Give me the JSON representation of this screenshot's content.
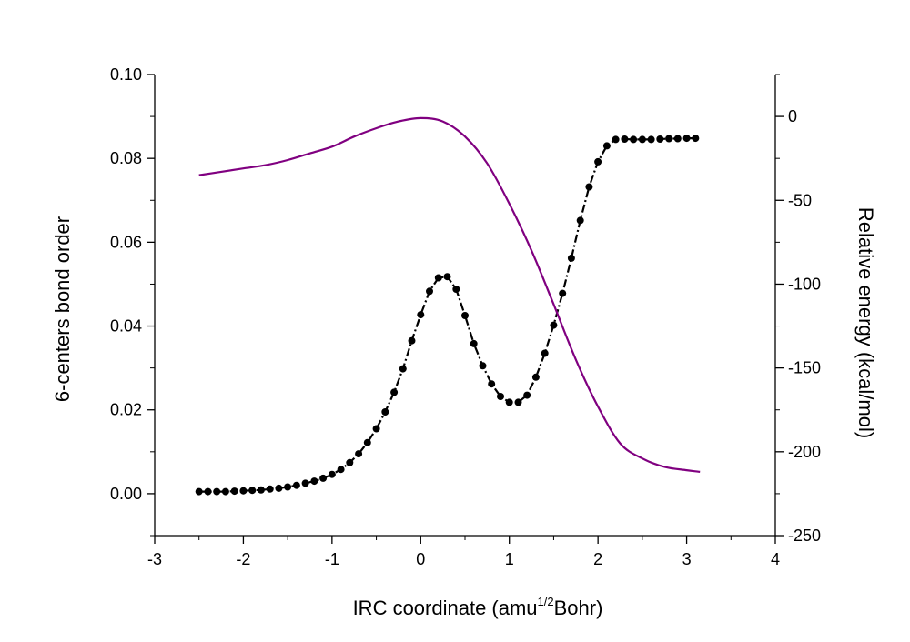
{
  "chart_data": {
    "type": "line",
    "title": "",
    "xlabel": {
      "pre": "IRC coordinate (amu",
      "sup": "1/2",
      "post": "Bohr)"
    },
    "ylabel_left": "6-centers bond order",
    "ylabel_right": "Relative energy (kcal/mol)",
    "xlim": [
      -3,
      4
    ],
    "ylim_left": [
      -0.01,
      0.1
    ],
    "ylim_right": [
      -250,
      25
    ],
    "x_ticks": [
      "-3",
      "-2",
      "-1",
      "0",
      "1",
      "2",
      "3",
      "4"
    ],
    "y_left_ticks": [
      "0.00",
      "0.02",
      "0.04",
      "0.06",
      "0.08",
      "0.10"
    ],
    "y_right_ticks": [
      "0",
      "-50",
      "-100",
      "-150",
      "-200",
      "-250"
    ],
    "grid": false,
    "series": [
      {
        "axis": "left",
        "color": "#000000",
        "style": "dash-dot with filled circle markers",
        "x": [
          -2.5,
          -2.4,
          -2.3,
          -2.2,
          -2.1,
          -2.0,
          -1.9,
          -1.8,
          -1.7,
          -1.6,
          -1.5,
          -1.4,
          -1.3,
          -1.2,
          -1.1,
          -1.0,
          -0.9,
          -0.8,
          -0.7,
          -0.6,
          -0.5,
          -0.4,
          -0.3,
          -0.2,
          -0.1,
          0.0,
          0.1,
          0.2,
          0.3,
          0.4,
          0.5,
          0.6,
          0.7,
          0.8,
          0.9,
          1.0,
          1.1,
          1.2,
          1.3,
          1.4,
          1.5,
          1.6,
          1.7,
          1.8,
          1.9,
          2.0,
          2.1,
          2.2,
          2.3,
          2.4,
          2.5,
          2.6,
          2.7,
          2.8,
          2.9,
          3.0,
          3.1
        ],
        "values": [
          0.0005,
          0.0005,
          0.0005,
          0.0005,
          0.0006,
          0.0007,
          0.0008,
          0.0009,
          0.0011,
          0.0013,
          0.0016,
          0.002,
          0.0025,
          0.003,
          0.0037,
          0.0046,
          0.0058,
          0.0074,
          0.0095,
          0.0122,
          0.0155,
          0.0195,
          0.0242,
          0.0298,
          0.0365,
          0.0427,
          0.0483,
          0.0515,
          0.0518,
          0.0488,
          0.0425,
          0.0358,
          0.0305,
          0.0262,
          0.0232,
          0.0218,
          0.0218,
          0.0235,
          0.0278,
          0.0335,
          0.0402,
          0.0478,
          0.0562,
          0.0652,
          0.0732,
          0.0792,
          0.083,
          0.0845,
          0.0846,
          0.0845,
          0.0845,
          0.0845,
          0.0846,
          0.0847,
          0.0847,
          0.0848,
          0.0848
        ]
      },
      {
        "axis": "right",
        "color": "#800080",
        "style": "solid",
        "x": [
          -2.5,
          -2.25,
          -2.0,
          -1.75,
          -1.5,
          -1.25,
          -1.0,
          -0.75,
          -0.5,
          -0.25,
          0.0,
          0.25,
          0.5,
          0.75,
          1.0,
          1.25,
          1.5,
          1.75,
          2.0,
          2.25,
          2.5,
          2.75,
          3.0,
          3.15
        ],
        "values": [
          -35,
          -33,
          -31,
          -29,
          -26,
          -22,
          -18,
          -12,
          -7,
          -3,
          -1,
          -3,
          -12,
          -28,
          -52,
          -80,
          -112,
          -145,
          -173,
          -195,
          -204,
          -209,
          -211,
          -212
        ]
      }
    ]
  }
}
